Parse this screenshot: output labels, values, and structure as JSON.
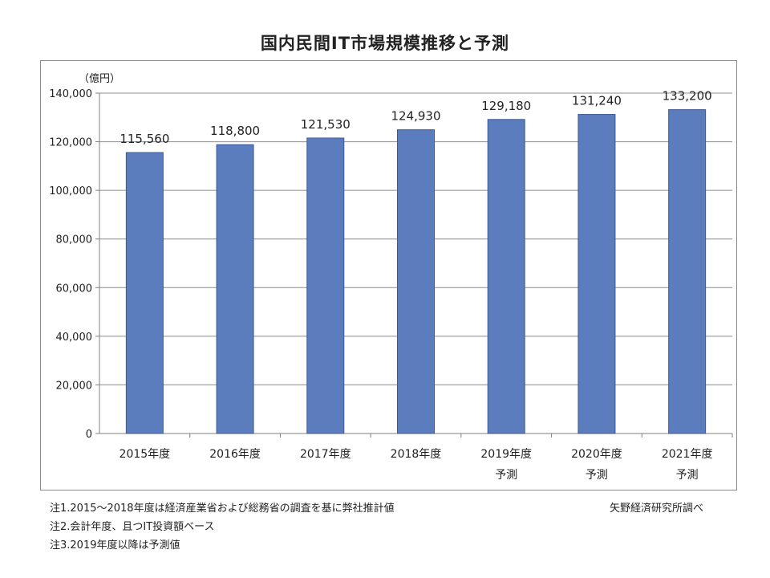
{
  "chart_data": {
    "type": "bar",
    "title": "国内民間IT市場規模推移と予測",
    "unit_label": "（億円）",
    "categories": [
      {
        "label": "2015年度",
        "sublabel": ""
      },
      {
        "label": "2016年度",
        "sublabel": ""
      },
      {
        "label": "2017年度",
        "sublabel": ""
      },
      {
        "label": "2018年度",
        "sublabel": ""
      },
      {
        "label": "2019年度",
        "sublabel": "予測"
      },
      {
        "label": "2020年度",
        "sublabel": "予測"
      },
      {
        "label": "2021年度",
        "sublabel": "予測"
      }
    ],
    "values": [
      115560,
      118800,
      121530,
      124930,
      129180,
      131240,
      133200
    ],
    "data_labels": [
      "115,560",
      "118,800",
      "121,530",
      "124,930",
      "129,180",
      "131,240",
      "133,200"
    ],
    "yticks": [
      "0",
      "20,000",
      "40,000",
      "60,000",
      "80,000",
      "100,000",
      "120,000",
      "140,000"
    ],
    "ylim": [
      0,
      140000
    ],
    "grid": true,
    "colors": {
      "bar": "#5b7dbd",
      "bar_edge": "#3c5a93",
      "grid": "#8c8c8c",
      "axis": "#7f7f7f"
    }
  },
  "notes": [
    "注1.2015～2018年度は経済産業省および総務省の調査を基に弊社推計値",
    "注2.会計年度、且つIT投資額ベース",
    "注3.2019年度以降は予測値"
  ],
  "source": "矢野経済研究所調べ"
}
